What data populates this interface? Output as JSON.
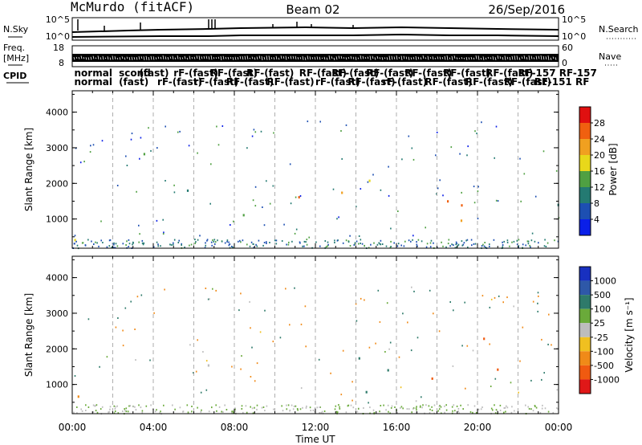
{
  "header": {
    "station": "McMurdo (fitACF)",
    "beam": "Beam 02",
    "date": "26/Sep/2016"
  },
  "strip": {
    "nsky_label": "N.Sky",
    "nsky_ticks": [
      "10^5",
      "10^0"
    ],
    "nsearch_label": "N.Search",
    "nsearch_ticks": [
      "10^5",
      "10^0"
    ],
    "freq_label_1": "Freq.",
    "freq_label_2": "[MHz]",
    "freq_ticks": [
      "18",
      "8"
    ],
    "nave_label": "Nave",
    "nave_ticks": [
      "60",
      "0"
    ],
    "cpid_label": "CPID",
    "cpid_entries": [
      {
        "text": "normal",
        "row": 0,
        "t": 0.1
      },
      {
        "text": "normal",
        "row": 1,
        "t": 0.1
      },
      {
        "text": "scond",
        "row": 0,
        "t": 2.3
      },
      {
        "text": "(fast)",
        "row": 1,
        "t": 2.3
      },
      {
        "text": "(fast)",
        "row": 0,
        "t": 3.3
      },
      {
        "text": "rF-(fast)",
        "row": 1,
        "t": 4.2
      },
      {
        "text": "rF-(fast)",
        "row": 0,
        "t": 5.0
      },
      {
        "text": "rF-(fast)",
        "row": 1,
        "t": 6.0
      },
      {
        "text": "RF-(fast)",
        "row": 0,
        "t": 6.8
      },
      {
        "text": "RF-(fast)",
        "row": 1,
        "t": 7.6
      },
      {
        "text": "RF-(fast)",
        "row": 0,
        "t": 8.6
      },
      {
        "text": "RF-(fast)",
        "row": 1,
        "t": 9.6
      },
      {
        "text": "RF-(fast)",
        "row": 0,
        "t": 11.2
      },
      {
        "text": "rF-(fast)",
        "row": 1,
        "t": 12.0
      },
      {
        "text": "RF-(fast)",
        "row": 0,
        "t": 12.8
      },
      {
        "text": "RF-(fast)",
        "row": 1,
        "t": 13.6
      },
      {
        "text": "RF-(fast)",
        "row": 0,
        "t": 14.5
      },
      {
        "text": "rF-(fast)",
        "row": 1,
        "t": 15.3
      },
      {
        "text": "RF-(fast)",
        "row": 0,
        "t": 16.4
      },
      {
        "text": "RF-(fast)",
        "row": 1,
        "t": 17.4
      },
      {
        "text": "RF-(fast)",
        "row": 0,
        "t": 18.3
      },
      {
        "text": "RF-(fast)",
        "row": 1,
        "t": 19.4
      },
      {
        "text": "RF-(fast)",
        "row": 0,
        "t": 20.4
      },
      {
        "text": "RF-(fast)",
        "row": 1,
        "t": 21.3
      },
      {
        "text": "RF-157 RF-157",
        "row": 0,
        "t": 22.0
      },
      {
        "text": "RF-151 RF",
        "row": 1,
        "t": 22.8
      }
    ]
  },
  "x_axis": {
    "label": "Time UT",
    "ticks": [
      "00:00",
      "04:00",
      "08:00",
      "12:00",
      "16:00",
      "20:00",
      "00:00"
    ]
  },
  "colorbars": {
    "power": {
      "label": "Power [dB]",
      "ticks": [
        "28",
        "24",
        "20",
        "16",
        "12",
        "8",
        "4"
      ],
      "colors": [
        "#0a1fe8",
        "#1d4fb2",
        "#247a72",
        "#4fa042",
        "#e8d81a",
        "#f0a020",
        "#f06010",
        "#e01010"
      ]
    },
    "velocity": {
      "label": "Velocity [m s⁻¹]",
      "ticks": [
        "1000",
        "500",
        "100",
        "25",
        "-25",
        "-100",
        "-500",
        "-1000"
      ],
      "colors": [
        "#1830c0",
        "#2e58a8",
        "#2e7a6a",
        "#6aaa3a",
        "#bdbdbd",
        "#f0c020",
        "#f08a18",
        "#f05a10",
        "#e01818"
      ]
    }
  },
  "chart_data": [
    {
      "type": "heatmap",
      "title": "McMurdo (fitACF)  Beam 02  26/Sep/2016",
      "panel": "power",
      "xlabel": "Time UT",
      "ylabel": "Slant Range [km]",
      "x_ticks": [
        "00:00",
        "04:00",
        "08:00",
        "12:00",
        "16:00",
        "20:00",
        "00:00"
      ],
      "y_ticks": [
        "1000",
        "2000",
        "3000",
        "4000"
      ],
      "xlim": [
        0,
        24
      ],
      "ylim": [
        180,
        4600
      ],
      "colorbar_label": "Power [dB]",
      "colorbar_range": [
        0,
        32
      ],
      "regions": [
        {
          "t0": 0.0,
          "t1": 1.6,
          "r0": 250,
          "r1": 1100,
          "v": 10
        },
        {
          "t0": 1.2,
          "t1": 2.0,
          "r0": 700,
          "r1": 1200,
          "v": 14
        },
        {
          "t0": 2.5,
          "t1": 3.8,
          "r0": 2500,
          "r1": 3500,
          "v": 8
        },
        {
          "t0": 5.0,
          "t1": 7.2,
          "r0": 1700,
          "r1": 3100,
          "v": 12
        },
        {
          "t0": 6.8,
          "t1": 9.3,
          "r0": 700,
          "r1": 1600,
          "v": 14
        },
        {
          "t0": 11.0,
          "t1": 15.8,
          "r0": 800,
          "r1": 2300,
          "v": 20
        },
        {
          "t0": 17.2,
          "t1": 21.3,
          "r0": 750,
          "r1": 2400,
          "v": 20
        },
        {
          "t0": 22.5,
          "t1": 24.0,
          "r0": 600,
          "r1": 2300,
          "v": 10
        }
      ]
    },
    {
      "type": "heatmap",
      "panel": "velocity",
      "xlabel": "Time UT",
      "ylabel": "Slant Range [km]",
      "x_ticks": [
        "00:00",
        "04:00",
        "08:00",
        "12:00",
        "16:00",
        "20:00",
        "00:00"
      ],
      "y_ticks": [
        "1000",
        "2000",
        "3000",
        "4000"
      ],
      "xlim": [
        0,
        24
      ],
      "ylim": [
        180,
        4600
      ],
      "colorbar_label": "Velocity [m s⁻¹]",
      "colorbar_ticks": [
        1000,
        500,
        100,
        25,
        -25,
        -100,
        -500,
        -1000
      ],
      "regions": [
        {
          "t0": 0.0,
          "t1": 1.9,
          "r0": 500,
          "r1": 1200,
          "v": -300
        },
        {
          "t0": 2.5,
          "t1": 3.8,
          "r0": 2800,
          "r1": 3500,
          "v": -150
        },
        {
          "t0": 5.5,
          "t1": 7.2,
          "r0": 1500,
          "r1": 3200,
          "v": 150
        },
        {
          "t0": 6.5,
          "t1": 7.5,
          "r0": 700,
          "r1": 1400,
          "v": 700
        },
        {
          "t0": 10.8,
          "t1": 15.6,
          "r0": 800,
          "r1": 2300,
          "v": 120
        },
        {
          "t0": 17.2,
          "t1": 21.5,
          "r0": 700,
          "r1": 2400,
          "v": -600
        },
        {
          "t0": 22.5,
          "t1": 24.0,
          "r0": 500,
          "r1": 1200,
          "v": -400
        }
      ]
    }
  ]
}
